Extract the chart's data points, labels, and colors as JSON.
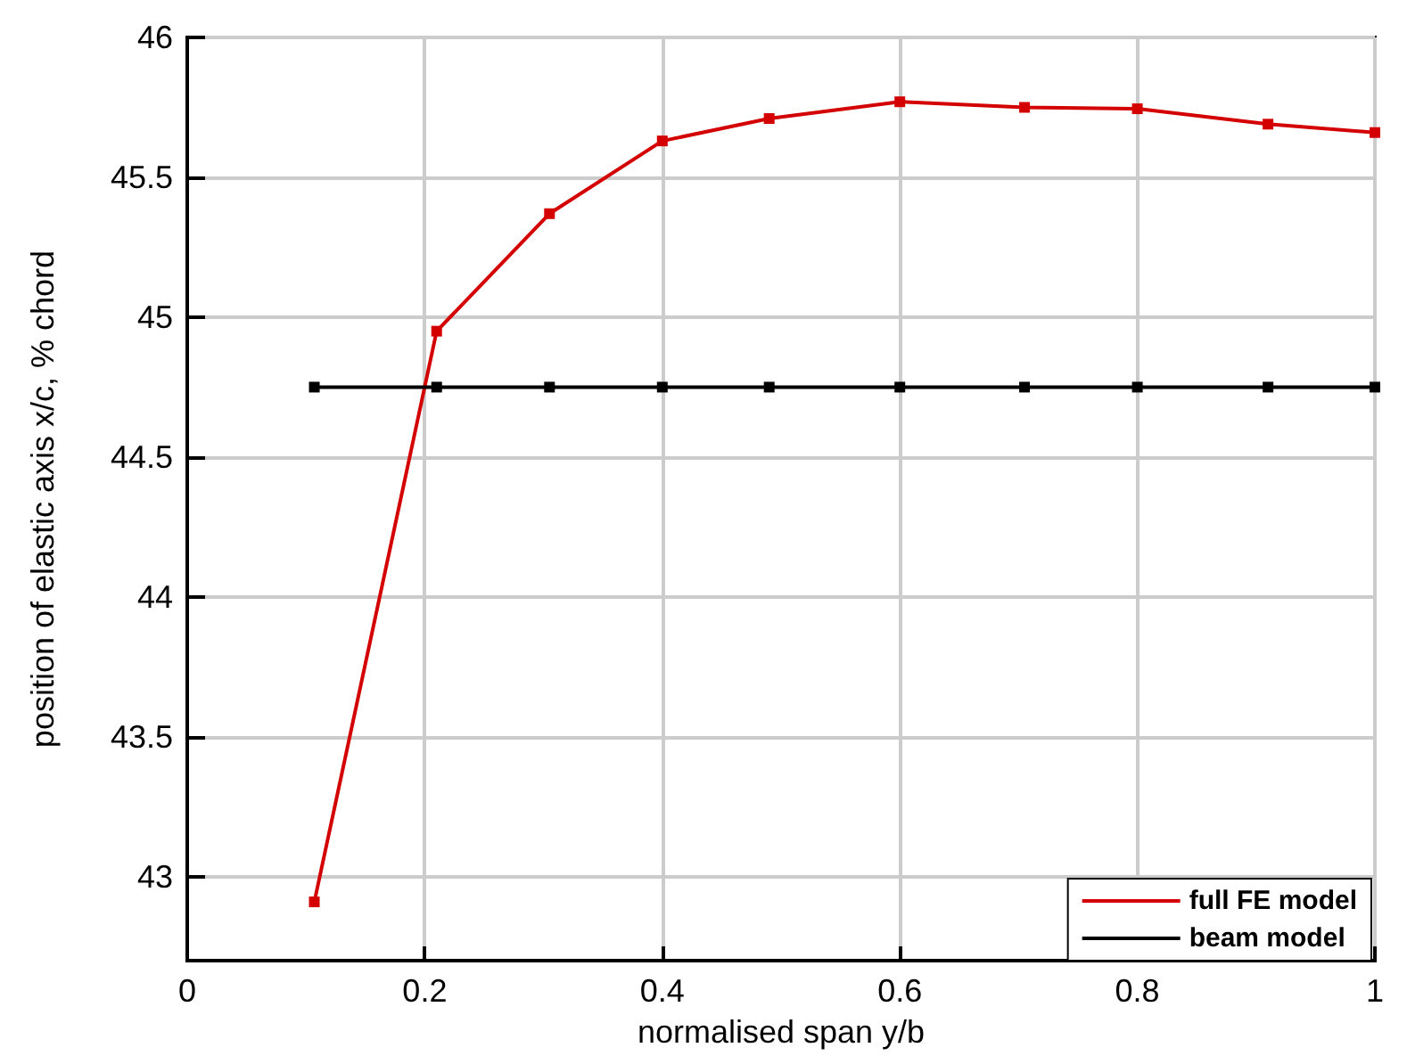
{
  "chart_data": {
    "type": "line",
    "xlabel": "normalised span y/b",
    "ylabel": "position of elastic axis x/c, % chord",
    "x": [
      0.107,
      0.21,
      0.305,
      0.4,
      0.49,
      0.6,
      0.705,
      0.8,
      0.91,
      1.0
    ],
    "series": [
      {
        "name": "full FE model",
        "color": "#d40000",
        "values": [
          42.91,
          44.95,
          45.37,
          45.63,
          45.71,
          45.77,
          45.75,
          45.745,
          45.69,
          45.66
        ]
      },
      {
        "name": "beam model",
        "color": "#000000",
        "values": [
          44.75,
          44.75,
          44.75,
          44.75,
          44.75,
          44.75,
          44.75,
          44.75,
          44.75,
          44.75
        ]
      }
    ],
    "xlim": [
      0,
      1
    ],
    "xticks": [
      0,
      0.2,
      0.4,
      0.6,
      0.8,
      1
    ],
    "ylim": [
      42.7,
      46
    ],
    "yticks": [
      43,
      43.5,
      44,
      44.5,
      45,
      45.5,
      46
    ],
    "grid": true,
    "legend": "bottom right",
    "marker": "square",
    "line_style": "solid"
  }
}
